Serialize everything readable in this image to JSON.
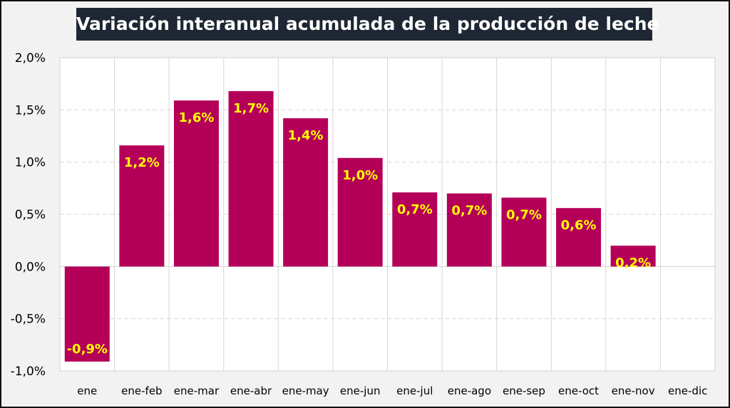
{
  "chart_data": {
    "type": "bar",
    "title": "Variación interanual acumulada de la producción de leche",
    "categories": [
      "ene",
      "ene-feb",
      "ene-mar",
      "ene-abr",
      "ene-may",
      "ene-jun",
      "ene-jul",
      "ene-ago",
      "ene-sep",
      "ene-oct",
      "ene-nov",
      "ene-dic"
    ],
    "values": [
      -0.91,
      1.16,
      1.59,
      1.68,
      1.42,
      1.04,
      0.71,
      0.7,
      0.66,
      0.56,
      0.2,
      null
    ],
    "data_labels": [
      "-0,9%",
      "1,2%",
      "1,6%",
      "1,7%",
      "1,4%",
      "1,0%",
      "0,7%",
      "0,7%",
      "0,7%",
      "0,6%",
      "0,2%",
      ""
    ],
    "ylim": [
      -1.0,
      2.0
    ],
    "yticks": [
      2.0,
      1.5,
      1.0,
      0.5,
      0.0,
      -0.5,
      -1.0
    ],
    "ytick_labels": [
      "2,0%",
      "1,5%",
      "1,0%",
      "0,5%",
      "0,0%",
      "-0,5%",
      "-1,0%"
    ],
    "xlabel": "",
    "ylabel": "",
    "grid": true,
    "legend": "none",
    "colors": {
      "bar": "#b5005a",
      "data_label": "#ffff00",
      "title_bg": "#1e2733",
      "title_text": "#ffffff"
    }
  }
}
